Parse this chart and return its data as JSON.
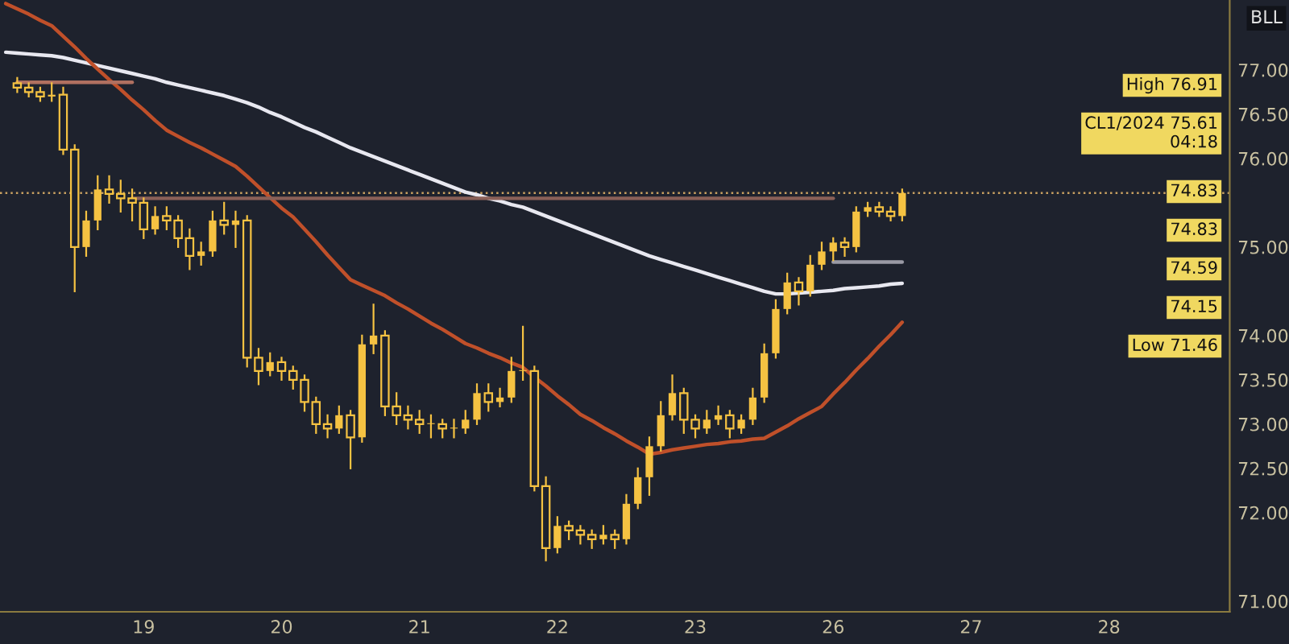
{
  "chart_data": {
    "type": "candlestick",
    "categories": [
      null,
      null,
      null,
      null,
      null,
      null,
      null,
      null,
      null,
      null,
      null,
      null,
      "19",
      null,
      null,
      null,
      null,
      null,
      null,
      null,
      null,
      null,
      null,
      null,
      "20",
      null,
      null,
      null,
      null,
      null,
      null,
      null,
      null,
      null,
      null,
      null,
      "21",
      null,
      null,
      null,
      null,
      null,
      null,
      null,
      null,
      null,
      null,
      null,
      "22",
      null,
      null,
      null,
      null,
      null,
      null,
      null,
      null,
      null,
      null,
      null,
      "23",
      null,
      null,
      null,
      null,
      null,
      null,
      null,
      null,
      null,
      null,
      null,
      "26",
      null,
      null,
      null,
      null,
      null,
      null,
      null,
      null,
      null,
      null,
      null,
      "27",
      null,
      null,
      null,
      null,
      null,
      null,
      null,
      null,
      null,
      null,
      null,
      "28",
      null,
      null,
      null,
      null,
      null,
      null,
      null,
      null,
      null,
      null
    ],
    "ylim": [
      70.88,
      77.79
    ],
    "yticks": [
      {
        "value": 71,
        "label": "71.00"
      },
      {
        "value": 72,
        "label": "72.00"
      },
      {
        "value": 72.5,
        "label": "72.50"
      },
      {
        "value": 73,
        "label": "73.00"
      },
      {
        "value": 73.5,
        "label": "73.50"
      },
      {
        "value": 74,
        "label": "74.00"
      },
      {
        "value": 75,
        "label": "75.00"
      },
      {
        "value": 76,
        "label": "76.00"
      },
      {
        "value": 76.5,
        "label": "76.50"
      },
      {
        "value": 77,
        "label": "77.00"
      }
    ],
    "series": [
      {
        "type": "line",
        "color": "#e8e8f0",
        "values": [
          77.2,
          77.19,
          77.18,
          77.17,
          77.16,
          77.14,
          77.11,
          77.08,
          77.05,
          77.02,
          76.99,
          76.96,
          76.93,
          76.9,
          76.86,
          76.83,
          76.8,
          76.77,
          76.74,
          76.71,
          76.67,
          76.63,
          76.58,
          76.52,
          76.47,
          76.41,
          76.35,
          76.3,
          76.24,
          76.18,
          76.12,
          76.07,
          76.02,
          75.97,
          75.92,
          75.87,
          75.82,
          75.77,
          75.72,
          75.67,
          75.62,
          75.59,
          75.55,
          75.52,
          75.48,
          75.45,
          75.4,
          75.35,
          75.3,
          75.25,
          75.2,
          75.15,
          75.1,
          75.05,
          75.0,
          74.95,
          74.9,
          74.86,
          74.82,
          74.78,
          74.74,
          74.7,
          74.66,
          74.62,
          74.58,
          74.54,
          74.5,
          74.47,
          74.47,
          74.48,
          74.49,
          74.5,
          74.51,
          74.53,
          74.54,
          74.55,
          74.56,
          74.58,
          74.59,
          null,
          null,
          null,
          null,
          null,
          null,
          null,
          null,
          null,
          null,
          null,
          null,
          null,
          null,
          null,
          null,
          null,
          null,
          null,
          null,
          null,
          null,
          null,
          null,
          null,
          null,
          null,
          null
        ]
      },
      {
        "type": "line",
        "color": "#c0502a",
        "values": [
          77.75,
          77.69,
          77.63,
          77.56,
          77.5,
          77.38,
          77.26,
          77.13,
          77.01,
          76.89,
          76.78,
          76.66,
          76.55,
          76.43,
          76.32,
          76.25,
          76.18,
          76.12,
          76.05,
          75.98,
          75.91,
          75.8,
          75.68,
          75.56,
          75.44,
          75.34,
          75.2,
          75.06,
          74.91,
          74.77,
          74.63,
          74.57,
          74.51,
          74.45,
          74.37,
          74.3,
          74.22,
          74.14,
          74.07,
          73.99,
          73.91,
          73.86,
          73.8,
          73.75,
          73.69,
          73.64,
          73.53,
          73.43,
          73.32,
          73.22,
          73.11,
          73.04,
          72.96,
          72.89,
          72.81,
          72.74,
          72.66,
          72.68,
          72.71,
          72.73,
          72.75,
          72.77,
          72.78,
          72.8,
          72.81,
          72.83,
          72.84,
          72.91,
          72.98,
          73.06,
          73.13,
          73.2,
          73.34,
          73.47,
          73.61,
          73.74,
          73.88,
          74.01,
          74.15,
          null,
          null,
          null,
          null,
          null,
          null,
          null,
          null,
          null,
          null,
          null,
          null,
          null,
          null,
          null,
          null,
          null,
          null,
          null,
          null,
          null,
          null,
          null,
          null,
          null,
          null,
          null,
          null
        ]
      },
      {
        "type": "line",
        "color": "#b07060",
        "values": [
          null,
          76.86,
          76.86,
          76.86,
          76.86,
          76.86,
          76.86,
          76.86,
          76.86,
          76.86,
          76.86,
          76.86,
          null,
          null,
          null,
          null,
          null,
          null,
          null,
          null,
          null,
          null,
          null,
          null,
          null,
          null,
          null,
          null,
          null,
          null,
          null,
          null,
          null,
          null,
          null,
          null,
          null,
          null,
          null,
          null,
          null,
          null,
          null,
          null,
          null,
          null,
          null,
          null,
          null,
          null,
          null,
          null,
          null,
          null,
          null,
          null,
          null,
          null,
          null,
          null,
          null,
          null,
          null,
          null,
          null,
          null,
          null,
          null,
          null,
          null,
          null,
          null,
          null,
          null,
          null,
          null,
          null,
          null,
          null,
          null,
          null,
          null,
          null,
          null,
          null,
          null,
          null,
          null,
          null,
          null,
          null,
          null,
          null,
          null,
          null,
          null,
          null,
          null,
          null,
          null,
          null,
          null,
          null,
          null,
          null,
          null,
          null
        ]
      },
      {
        "type": "line",
        "color": "#8a6058",
        "values": [
          null,
          null,
          null,
          null,
          null,
          null,
          null,
          null,
          null,
          null,
          null,
          75.55,
          75.55,
          75.55,
          75.55,
          75.55,
          75.55,
          75.55,
          75.55,
          75.55,
          75.55,
          75.55,
          75.55,
          75.55,
          75.55,
          75.55,
          75.55,
          75.55,
          75.55,
          75.55,
          75.55,
          75.55,
          75.55,
          75.55,
          75.55,
          75.55,
          75.55,
          75.55,
          75.55,
          75.55,
          75.55,
          75.55,
          75.55,
          75.55,
          75.55,
          75.55,
          75.55,
          75.55,
          75.55,
          75.55,
          75.55,
          75.55,
          75.55,
          75.55,
          75.55,
          75.55,
          75.55,
          75.55,
          75.55,
          75.55,
          75.55,
          75.55,
          75.55,
          75.55,
          75.55,
          75.55,
          75.55,
          75.55,
          75.55,
          75.55,
          75.55,
          75.55,
          75.55,
          null,
          null,
          null,
          null,
          null,
          null,
          null,
          null,
          null,
          null,
          null,
          null,
          null,
          null,
          null,
          null,
          null,
          null,
          null,
          null,
          null,
          null,
          null,
          null,
          null,
          null,
          null,
          null,
          null,
          null,
          null,
          null,
          null,
          null
        ]
      },
      {
        "type": "line",
        "color": "#9a9aa5",
        "values": [
          null,
          null,
          null,
          null,
          null,
          null,
          null,
          null,
          null,
          null,
          null,
          null,
          null,
          null,
          null,
          null,
          null,
          null,
          null,
          null,
          null,
          null,
          null,
          null,
          null,
          null,
          null,
          null,
          null,
          null,
          null,
          null,
          null,
          null,
          null,
          null,
          null,
          null,
          null,
          null,
          null,
          null,
          null,
          null,
          null,
          null,
          null,
          null,
          null,
          null,
          null,
          null,
          null,
          null,
          null,
          null,
          null,
          null,
          null,
          null,
          null,
          null,
          null,
          null,
          null,
          null,
          null,
          null,
          null,
          null,
          null,
          null,
          74.83,
          74.83,
          74.83,
          74.83,
          74.83,
          74.83,
          74.83,
          null,
          null,
          null,
          null,
          null,
          null,
          null,
          null,
          null,
          null,
          null,
          null,
          null,
          null,
          null,
          null,
          null,
          null,
          null,
          null,
          null,
          null,
          null,
          null,
          null,
          null,
          null,
          null
        ]
      },
      {
        "color": "#f5c242",
        "ohlc": [
          null,
          [
            76.85,
            76.91,
            76.75,
            76.8
          ],
          [
            76.8,
            76.85,
            76.7,
            76.75
          ],
          [
            76.75,
            76.8,
            76.65,
            76.7
          ],
          [
            76.7,
            76.85,
            76.65,
            76.72
          ],
          [
            76.72,
            76.8,
            76.05,
            76.1
          ],
          [
            76.1,
            76.15,
            74.5,
            75.0
          ],
          [
            75.0,
            75.4,
            74.9,
            75.3
          ],
          [
            75.3,
            75.8,
            75.2,
            75.65
          ],
          [
            75.65,
            75.8,
            75.5,
            75.6
          ],
          [
            75.6,
            75.75,
            75.4,
            75.55
          ],
          [
            75.55,
            75.65,
            75.3,
            75.5
          ],
          [
            75.5,
            75.55,
            75.1,
            75.2
          ],
          [
            75.2,
            75.45,
            75.15,
            75.35
          ],
          [
            75.35,
            75.45,
            75.2,
            75.3
          ],
          [
            75.3,
            75.35,
            75.0,
            75.1
          ],
          [
            75.1,
            75.2,
            74.75,
            74.9
          ],
          [
            74.9,
            75.05,
            74.8,
            74.95
          ],
          [
            74.95,
            75.4,
            74.9,
            75.3
          ],
          [
            75.3,
            75.5,
            75.15,
            75.25
          ],
          [
            75.25,
            75.4,
            75.0,
            75.3
          ],
          [
            75.3,
            75.35,
            73.65,
            73.75
          ],
          [
            73.75,
            73.85,
            73.45,
            73.6
          ],
          [
            73.6,
            73.8,
            73.55,
            73.7
          ],
          [
            73.7,
            73.75,
            73.5,
            73.6
          ],
          [
            73.6,
            73.65,
            73.4,
            73.5
          ],
          [
            73.5,
            73.55,
            73.15,
            73.25
          ],
          [
            73.25,
            73.3,
            72.9,
            73.0
          ],
          [
            73.0,
            73.1,
            72.85,
            72.95
          ],
          [
            72.95,
            73.2,
            72.9,
            73.1
          ],
          [
            73.1,
            73.15,
            72.5,
            72.85
          ],
          [
            72.85,
            74.0,
            72.8,
            73.9
          ],
          [
            73.9,
            74.35,
            73.8,
            74.0
          ],
          [
            74.0,
            74.05,
            73.1,
            73.2
          ],
          [
            73.2,
            73.35,
            73.0,
            73.1
          ],
          [
            73.1,
            73.2,
            72.95,
            73.05
          ],
          [
            73.05,
            73.15,
            72.9,
            73.0
          ],
          [
            73.0,
            73.1,
            72.85,
            73.0
          ],
          [
            73.0,
            73.05,
            72.85,
            72.95
          ],
          [
            72.95,
            73.05,
            72.85,
            72.95
          ],
          [
            72.95,
            73.15,
            72.9,
            73.05
          ],
          [
            73.05,
            73.45,
            73.0,
            73.35
          ],
          [
            73.35,
            73.45,
            73.15,
            73.25
          ],
          [
            73.25,
            73.4,
            73.2,
            73.3
          ],
          [
            73.3,
            73.75,
            73.25,
            73.6
          ],
          [
            73.6,
            74.1,
            73.5,
            73.6
          ],
          [
            73.6,
            73.65,
            72.25,
            72.3
          ],
          [
            72.3,
            72.4,
            71.46,
            71.6
          ],
          [
            71.6,
            71.95,
            71.55,
            71.85
          ],
          [
            71.85,
            71.9,
            71.7,
            71.8
          ],
          [
            71.8,
            71.85,
            71.65,
            71.75
          ],
          [
            71.75,
            71.8,
            71.6,
            71.7
          ],
          [
            71.7,
            71.85,
            71.65,
            71.75
          ],
          [
            71.75,
            71.8,
            71.6,
            71.7
          ],
          [
            71.7,
            72.2,
            71.65,
            72.1
          ],
          [
            72.1,
            72.5,
            72.05,
            72.4
          ],
          [
            72.4,
            72.85,
            72.2,
            72.75
          ],
          [
            72.75,
            73.25,
            72.7,
            73.1
          ],
          [
            73.1,
            73.55,
            73.05,
            73.35
          ],
          [
            73.35,
            73.4,
            72.9,
            73.05
          ],
          [
            73.05,
            73.1,
            72.85,
            72.95
          ],
          [
            72.95,
            73.15,
            72.9,
            73.05
          ],
          [
            73.05,
            73.2,
            73.0,
            73.1
          ],
          [
            73.1,
            73.15,
            72.85,
            72.95
          ],
          [
            72.95,
            73.1,
            72.9,
            73.05
          ],
          [
            73.05,
            73.4,
            73.0,
            73.3
          ],
          [
            73.3,
            73.9,
            73.25,
            73.8
          ],
          [
            73.8,
            74.4,
            73.75,
            74.3
          ],
          [
            74.3,
            74.7,
            74.25,
            74.6
          ],
          [
            74.6,
            74.65,
            74.35,
            74.5
          ],
          [
            74.5,
            74.9,
            74.45,
            74.8
          ],
          [
            74.8,
            75.05,
            74.75,
            74.95
          ],
          [
            74.95,
            75.1,
            74.85,
            75.05
          ],
          [
            75.05,
            75.1,
            74.9,
            75.0
          ],
          [
            75.0,
            75.45,
            74.95,
            75.4
          ],
          [
            75.4,
            75.5,
            75.35,
            75.45
          ],
          [
            75.45,
            75.5,
            75.35,
            75.4
          ],
          [
            75.4,
            75.45,
            75.3,
            75.35
          ],
          [
            75.35,
            75.65,
            75.3,
            75.61
          ],
          null,
          null,
          null,
          null,
          null,
          null,
          null,
          null,
          null,
          null,
          null,
          null,
          null,
          null,
          null,
          null,
          null,
          null,
          null,
          null,
          null,
          null,
          null,
          null,
          null,
          null,
          null,
          null
        ]
      }
    ],
    "ref_lines": [
      {
        "axis": "y",
        "value": 75.61,
        "color": "#c8a060",
        "line_style": "dotted"
      }
    ],
    "annotations": [
      "BLL",
      "High 76.91",
      "CL1/2024 75.61\n04:18",
      "74.83",
      "74.83",
      "74.59",
      "74.15",
      "Low 71.46"
    ]
  }
}
